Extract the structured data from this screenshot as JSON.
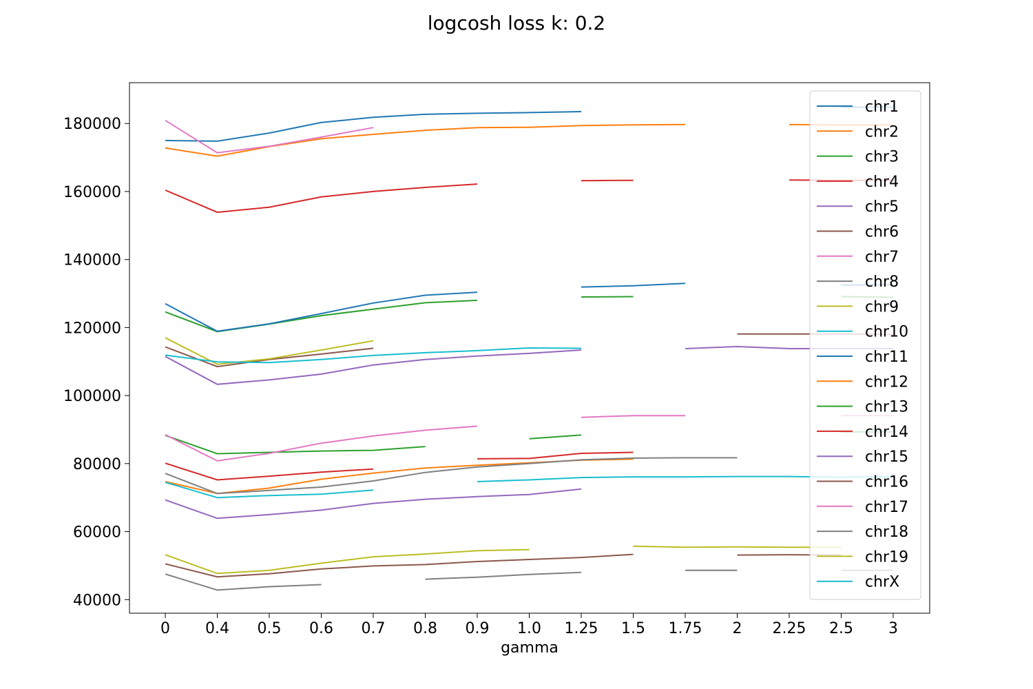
{
  "chart_data": {
    "type": "line",
    "title": "logcosh loss k: 0.2",
    "xlabel": "gamma",
    "ylabel": "",
    "categories": [
      "0",
      "0.4",
      "0.5",
      "0.6",
      "0.7",
      "0.8",
      "0.9",
      "1.0",
      "1.25",
      "1.5",
      "1.75",
      "2",
      "2.25",
      "2.5",
      "3"
    ],
    "ylim": [
      36000,
      192000
    ],
    "yticks": [
      40000,
      60000,
      80000,
      100000,
      120000,
      140000,
      160000,
      180000
    ],
    "grid": false,
    "legend_position": "upper right",
    "series": [
      {
        "name": "chr1",
        "color": "#1f77b4",
        "values": [
          175000,
          174800,
          177200,
          180300,
          181800,
          182700,
          183000,
          183200,
          183500,
          null,
          null,
          null,
          null,
          184800,
          184800
        ]
      },
      {
        "name": "chr2",
        "color": "#ff7f0e",
        "values": [
          172800,
          170400,
          173200,
          175500,
          176800,
          178000,
          178800,
          178900,
          179400,
          179600,
          179700,
          null,
          179700,
          179600,
          179600
        ]
      },
      {
        "name": "chr3",
        "color": "#2ca02c",
        "values": [
          124600,
          118800,
          121000,
          123500,
          125400,
          127300,
          128000,
          null,
          129000,
          129100,
          null,
          null,
          null,
          129100,
          128900
        ]
      },
      {
        "name": "chr4",
        "color": "#d62728",
        "values": [
          160400,
          153900,
          155400,
          158400,
          160000,
          161200,
          162200,
          null,
          163200,
          163300,
          null,
          null,
          163400,
          163300,
          163300
        ]
      },
      {
        "name": "chr5",
        "color": "#9467bd",
        "values": [
          111500,
          103300,
          104600,
          106300,
          109000,
          110600,
          111600,
          112400,
          113400,
          null,
          113800,
          114400,
          113800,
          113800,
          113800
        ]
      },
      {
        "name": "chr6",
        "color": "#8c564b",
        "values": [
          114300,
          108500,
          110600,
          112200,
          113900,
          null,
          null,
          null,
          null,
          null,
          null,
          118100,
          118100,
          118100,
          118000
        ]
      },
      {
        "name": "chr7",
        "color": "#e377c2",
        "values": [
          180900,
          171400,
          173300,
          176000,
          178800,
          null,
          null,
          null,
          null,
          null,
          null,
          null,
          null,
          null,
          null
        ]
      },
      {
        "name": "chr8",
        "color": "#7f7f7f",
        "values": [
          null,
          null,
          null,
          null,
          null,
          null,
          null,
          null,
          null,
          null,
          null,
          null,
          null,
          null,
          null
        ]
      },
      {
        "name": "chr9",
        "color": "#bcbd22",
        "values": [
          117000,
          109200,
          110800,
          113400,
          116100,
          null,
          null,
          null,
          null,
          null,
          null,
          null,
          null,
          null,
          null
        ]
      },
      {
        "name": "chr10",
        "color": "#17becf",
        "values": [
          111900,
          109900,
          109700,
          110600,
          111800,
          112600,
          113200,
          114000,
          113900,
          null,
          null,
          null,
          null,
          null,
          null
        ]
      },
      {
        "name": "chr11",
        "color": "#1f77b4",
        "values": [
          127000,
          118900,
          121100,
          124100,
          127200,
          129500,
          130400,
          null,
          131900,
          132300,
          133000,
          null,
          null,
          132500,
          132600
        ]
      },
      {
        "name": "chr12",
        "color": "#ff7f0e",
        "values": [
          74700,
          71200,
          72800,
          75400,
          77200,
          78700,
          79500,
          80200,
          81000,
          81300,
          null,
          null,
          null,
          null,
          null
        ]
      },
      {
        "name": "chr13",
        "color": "#2ca02c",
        "values": [
          88300,
          82900,
          83300,
          83700,
          83900,
          85000,
          null,
          87300,
          88400,
          null,
          null,
          null,
          null,
          89300,
          89300
        ]
      },
      {
        "name": "chr14",
        "color": "#d62728",
        "values": [
          80100,
          75200,
          76300,
          77500,
          78400,
          null,
          81400,
          81500,
          83000,
          83300,
          null,
          null,
          null,
          null,
          null
        ]
      },
      {
        "name": "chr15",
        "color": "#9467bd",
        "values": [
          69300,
          63900,
          65000,
          66300,
          68300,
          69500,
          70300,
          70900,
          72500,
          null,
          null,
          null,
          null,
          null,
          null
        ]
      },
      {
        "name": "chr16",
        "color": "#8c564b",
        "values": [
          50500,
          46700,
          47600,
          49000,
          49900,
          50300,
          51200,
          51800,
          52400,
          53300,
          null,
          53100,
          53200,
          53100,
          null
        ]
      },
      {
        "name": "chr17",
        "color": "#e377c2",
        "values": [
          88500,
          80800,
          83000,
          86000,
          88100,
          89800,
          91000,
          null,
          93600,
          94100,
          94100,
          null,
          null,
          94100,
          94100
        ]
      },
      {
        "name": "chr18",
        "color": "#7f7f7f",
        "values": [
          77100,
          71200,
          72100,
          73100,
          74900,
          77400,
          79000,
          80000,
          81100,
          81600,
          81700,
          81700,
          null,
          null,
          null
        ]
      },
      {
        "name": "chr19",
        "color": "#bcbd22",
        "values": [
          53200,
          47700,
          48600,
          50700,
          52600,
          53400,
          54400,
          54700,
          null,
          55700,
          55400,
          55500,
          55400,
          55400,
          null
        ]
      },
      {
        "name": "chrX",
        "color": "#17becf",
        "values": [
          74500,
          70000,
          70600,
          71000,
          72200,
          null,
          74700,
          75200,
          75900,
          76100,
          76100,
          76200,
          76200,
          76000,
          76200
        ]
      }
    ],
    "extra_segments": [
      {
        "color": "#7f7f7f",
        "points": [
          [
            0,
            47500
          ],
          [
            1,
            42800
          ],
          [
            2,
            43800
          ],
          [
            3,
            44400
          ]
        ]
      },
      {
        "color": "#7f7f7f",
        "points": [
          [
            5,
            46000
          ],
          [
            6,
            46600
          ],
          [
            7,
            47400
          ],
          [
            8,
            48000
          ]
        ]
      },
      {
        "color": "#7f7f7f",
        "points": [
          [
            10,
            48600
          ],
          [
            11,
            48600
          ]
        ]
      },
      {
        "color": "#7f7f7f",
        "points": [
          [
            13,
            48600
          ],
          [
            14,
            48600
          ]
        ]
      }
    ]
  }
}
